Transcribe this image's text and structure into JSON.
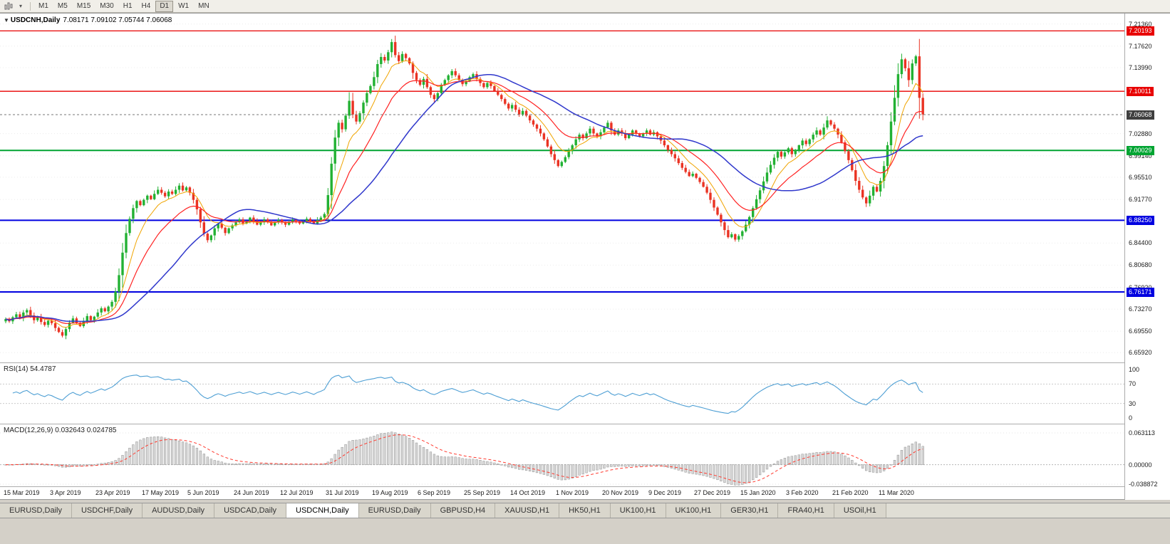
{
  "toolbar": {
    "timeframes": [
      {
        "label": "M1",
        "active": false
      },
      {
        "label": "M5",
        "active": false
      },
      {
        "label": "M15",
        "active": false
      },
      {
        "label": "M30",
        "active": false
      },
      {
        "label": "H1",
        "active": false
      },
      {
        "label": "H4",
        "active": false
      },
      {
        "label": "D1",
        "active": true
      },
      {
        "label": "W1",
        "active": false
      },
      {
        "label": "MN",
        "active": false
      }
    ]
  },
  "icons": {
    "symbol_menu": "▼",
    "chart_menu": "▾"
  },
  "chart": {
    "info": {
      "symbol": "USDCNH,Daily",
      "ohlc": "7.08171 7.09102 7.05744 7.06068"
    },
    "price_axis_ticks": [
      "7.21360",
      "7.17620",
      "7.13990",
      "7.02880",
      "6.99140",
      "6.95510",
      "6.91770",
      "6.84400",
      "6.80680",
      "6.76920",
      "6.73270",
      "6.69550",
      "6.65920"
    ],
    "levels": [
      {
        "value": 7.20193,
        "label": "7.20193",
        "color": "#e80000",
        "width": 1.3,
        "style": "solid",
        "role": "resistance"
      },
      {
        "value": 7.10011,
        "label": "7.10011",
        "color": "#e80000",
        "width": 1.3,
        "style": "solid",
        "role": "resistance"
      },
      {
        "value": 7.06068,
        "label": "7.06068",
        "color": "#3f3f3f",
        "width": 1,
        "style": "dotted",
        "role": "current-price"
      },
      {
        "value": 7.00029,
        "label": "7.00029",
        "color": "#00a432",
        "width": 2,
        "style": "solid",
        "role": "support"
      },
      {
        "value": 6.8825,
        "label": "6.88250",
        "color": "#0000e0",
        "width": 2,
        "style": "solid",
        "role": "support"
      },
      {
        "value": 6.76171,
        "label": "6.76171",
        "color": "#0000e0",
        "width": 2,
        "style": "solid",
        "role": "support"
      }
    ]
  },
  "rsi": {
    "label": "RSI(14) 54.4787",
    "period": 14,
    "value": 54.4787,
    "line_color": "#4e9fd4",
    "ticks": [
      {
        "value": 100,
        "label": "100"
      },
      {
        "value": 70,
        "label": "70"
      },
      {
        "value": 30,
        "label": "30"
      },
      {
        "value": 0,
        "label": "0"
      }
    ],
    "dashed_levels": [
      70,
      30
    ]
  },
  "macd": {
    "label": "MACD(12,26,9) 0.032643 0.024785",
    "macd_value": 0.032643,
    "signal_value": 0.024785,
    "max": 0.063113,
    "min": -0.038872,
    "histogram_color": "#d8d8d8",
    "signal_color": "#ff3b30",
    "ticks": [
      {
        "value": 0.063113,
        "label": "0.063113"
      },
      {
        "value": 0,
        "label": "0.00000"
      },
      {
        "value": -0.038872,
        "label": "-0.038872"
      }
    ]
  },
  "tabs": [
    {
      "label": "EURUSD,Daily",
      "active": false
    },
    {
      "label": "USDCHF,Daily",
      "active": false
    },
    {
      "label": "AUDUSD,Daily",
      "active": false
    },
    {
      "label": "USDCAD,Daily",
      "active": false
    },
    {
      "label": "USDCNH,Daily",
      "active": true
    },
    {
      "label": "EURUSD,Daily",
      "active": false
    },
    {
      "label": "GBPUSD,H4",
      "active": false
    },
    {
      "label": "XAUUSD,H1",
      "active": false
    },
    {
      "label": "HK50,H1",
      "active": false
    },
    {
      "label": "UK100,H1",
      "active": false
    },
    {
      "label": "UK100,H1",
      "active": false
    },
    {
      "label": "GER30,H1",
      "active": false
    },
    {
      "label": "FRA40,H1",
      "active": false
    },
    {
      "label": "USOil,H1",
      "active": false
    }
  ],
  "chart_data": {
    "type": "candlestick",
    "symbol": "USDCNH",
    "timeframe": "Daily",
    "title": "USDCNH,Daily",
    "ohlc_display": {
      "open": 7.08171,
      "high": 7.09102,
      "low": 7.05744,
      "close": 7.06068
    },
    "y_range": {
      "min": 6.65,
      "max": 7.224
    },
    "up_color": "#22b133",
    "down_color": "#ea3323",
    "label_every": 13,
    "date_labels": [
      "15 Mar 2019",
      "3 Apr 2019",
      "23 Apr 2019",
      "17 May 2019",
      "5 Jun 2019",
      "24 Jun 2019",
      "12 Jul 2019",
      "31 Jul 2019",
      "19 Aug 2019",
      "6 Sep 2019",
      "25 Sep 2019",
      "14 Oct 2019",
      "1 Nov 2019",
      "20 Nov 2019",
      "9 Dec 2019",
      "27 Dec 2019",
      "15 Jan 2020",
      "3 Feb 2020",
      "21 Feb 2020",
      "11 Mar 2020"
    ],
    "closes": [
      6.716,
      6.712,
      6.719,
      6.724,
      6.718,
      6.727,
      6.731,
      6.722,
      6.714,
      6.719,
      6.711,
      6.706,
      6.713,
      6.709,
      6.701,
      6.694,
      6.688,
      6.699,
      6.71,
      6.717,
      6.709,
      6.704,
      6.713,
      6.721,
      6.714,
      6.72,
      6.727,
      6.734,
      6.729,
      6.737,
      6.745,
      6.762,
      6.79,
      6.828,
      6.861,
      6.885,
      6.903,
      6.915,
      6.908,
      6.917,
      6.924,
      6.918,
      6.927,
      6.934,
      6.929,
      6.923,
      6.931,
      6.927,
      6.934,
      6.941,
      6.933,
      6.938,
      6.929,
      6.917,
      6.901,
      6.879,
      6.86,
      6.849,
      6.857,
      6.869,
      6.877,
      6.87,
      6.861,
      6.869,
      6.874,
      6.879,
      6.884,
      6.877,
      6.881,
      6.887,
      6.881,
      6.875,
      6.879,
      6.884,
      6.879,
      6.874,
      6.879,
      6.883,
      6.879,
      6.875,
      6.879,
      6.884,
      6.881,
      6.877,
      6.881,
      6.885,
      6.881,
      6.877,
      6.883,
      6.887,
      6.893,
      6.925,
      6.978,
      7.022,
      7.047,
      7.036,
      7.059,
      7.084,
      7.061,
      7.049,
      7.063,
      7.081,
      7.097,
      7.109,
      7.124,
      7.146,
      7.158,
      7.152,
      7.166,
      7.183,
      7.161,
      7.151,
      7.163,
      7.156,
      7.147,
      7.131,
      7.119,
      7.111,
      7.121,
      7.107,
      7.094,
      7.087,
      7.097,
      7.111,
      7.119,
      7.127,
      7.134,
      7.127,
      7.119,
      7.112,
      7.117,
      7.124,
      7.129,
      7.121,
      7.114,
      7.107,
      7.114,
      7.109,
      7.101,
      7.094,
      7.087,
      7.079,
      7.071,
      7.077,
      7.069,
      7.061,
      7.067,
      7.059,
      7.051,
      7.044,
      7.037,
      7.029,
      7.019,
      7.007,
      6.994,
      6.984,
      6.974,
      6.981,
      6.989,
      6.999,
      7.009,
      7.019,
      7.027,
      7.021,
      7.029,
      7.037,
      7.029,
      7.024,
      7.031,
      7.039,
      7.047,
      7.034,
      7.027,
      7.034,
      7.029,
      7.021,
      7.027,
      7.034,
      7.029,
      7.024,
      7.029,
      7.034,
      7.027,
      7.031,
      7.024,
      7.017,
      7.009,
      7.001,
      6.994,
      6.987,
      6.979,
      6.971,
      6.964,
      6.957,
      6.961,
      6.954,
      6.947,
      6.939,
      6.929,
      6.917,
      6.904,
      6.892,
      6.879,
      6.866,
      6.854,
      6.859,
      6.85,
      6.856,
      6.864,
      6.875,
      6.888,
      6.903,
      6.918,
      6.933,
      6.948,
      6.963,
      6.976,
      6.988,
      6.998,
      6.99,
      6.997,
      7.004,
      6.994,
      7.001,
      7.009,
      7.017,
      7.011,
      7.019,
      7.027,
      7.034,
      7.027,
      7.039,
      7.051,
      7.044,
      7.037,
      7.027,
      7.014,
      6.999,
      6.984,
      6.967,
      6.949,
      6.934,
      6.921,
      6.911,
      6.924,
      6.939,
      6.931,
      6.949,
      6.974,
      7.009,
      7.049,
      7.089,
      7.129,
      7.154,
      7.139,
      7.119,
      7.147,
      7.159,
      7.089,
      7.061
    ],
    "moving_averages": [
      {
        "period": 8,
        "method": "ema",
        "color": "#f0a400",
        "width": 1
      },
      {
        "period": 18,
        "method": "ema",
        "color": "#ff2222",
        "width": 1.2
      },
      {
        "period": 34,
        "method": "sma",
        "color": "#3038cc",
        "width": 1.5
      }
    ],
    "horizontal_levels": [
      7.20193,
      7.10011,
      7.00029,
      6.8825,
      6.76171
    ],
    "current_price": 7.06068,
    "indicators": [
      {
        "name": "RSI",
        "period": 14,
        "last_value": 54.4787
      },
      {
        "name": "MACD",
        "params": [
          12,
          26,
          9
        ],
        "last_values": [
          0.032643,
          0.024785
        ]
      }
    ]
  }
}
